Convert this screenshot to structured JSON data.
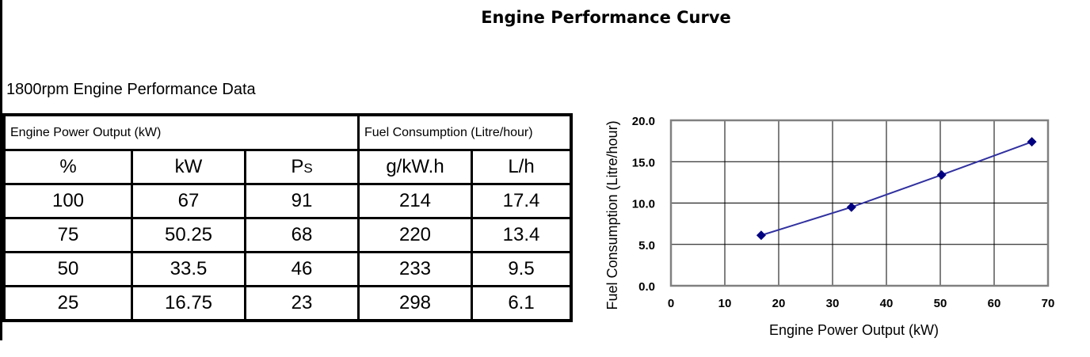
{
  "title": "Engine Performance Curve",
  "subtitle": "1800rpm Engine Performance Data",
  "table": {
    "group_headers": [
      "Engine Power Output (kW)",
      "Fuel Consumption (Litre/hour)"
    ],
    "columns": [
      "%",
      "kW",
      "P",
      "g/kW.h",
      "L/h"
    ],
    "ps_sub": "S",
    "rows": [
      [
        "100",
        "67",
        "91",
        "214",
        "17.4"
      ],
      [
        "75",
        "50.25",
        "68",
        "220",
        "13.4"
      ],
      [
        "50",
        "33.5",
        "46",
        "233",
        "9.5"
      ],
      [
        "25",
        "16.75",
        "23",
        "298",
        "6.1"
      ]
    ]
  },
  "chart_data": {
    "type": "line",
    "xlabel": "Engine Power Output (kW)",
    "ylabel": "Fuel Consumption (Litre/hour)",
    "xlim": [
      0,
      70
    ],
    "ylim": [
      0,
      20
    ],
    "xticks": [
      "0",
      "10",
      "20",
      "30",
      "40",
      "50",
      "60",
      "70"
    ],
    "yticks": [
      "0.0",
      "5.0",
      "10.0",
      "15.0",
      "20.0"
    ],
    "grid": true,
    "series": [
      {
        "x": [
          16.75,
          33.5,
          50.25,
          67
        ],
        "y": [
          6.1,
          9.5,
          13.4,
          17.4
        ],
        "color": "#000080",
        "marker": "diamond"
      }
    ]
  }
}
